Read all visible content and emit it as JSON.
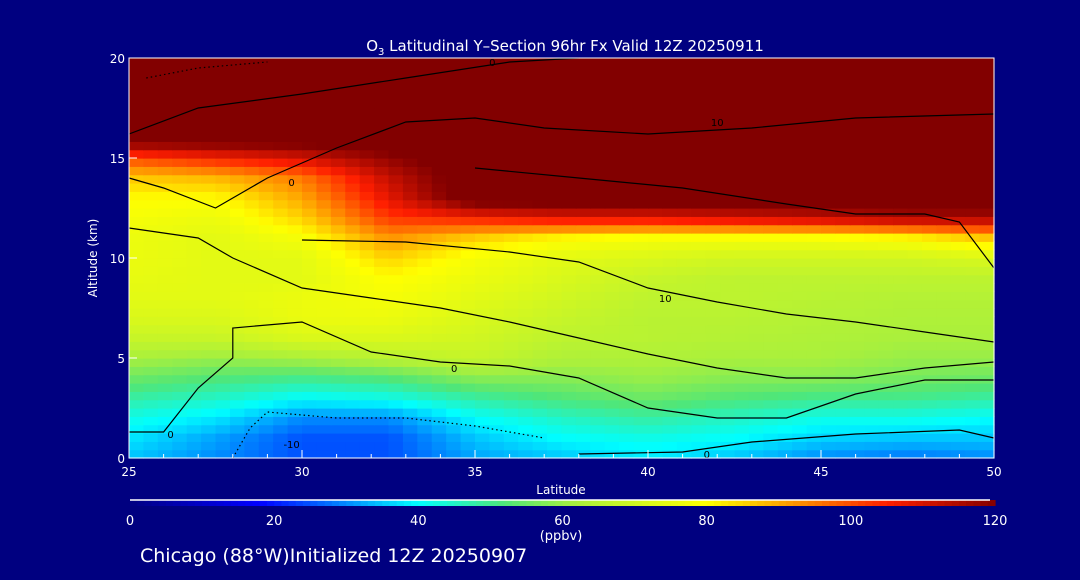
{
  "chart_data": {
    "type": "heatmap",
    "title_prefix": "O",
    "title_sub": "3",
    "title_rest": " Latitudinal Y–Section 96hr  Fx Valid 12Z 20250911",
    "xlabel": "Latitude",
    "ylabel": "Altitude (km)",
    "xlim": [
      25,
      50
    ],
    "ylim": [
      0,
      20
    ],
    "xticks": [
      "25",
      "30",
      "35",
      "40",
      "45",
      "50"
    ],
    "yticks": [
      "0",
      "5",
      "10",
      "15",
      "20"
    ],
    "colorbar": {
      "range": [
        0,
        120
      ],
      "ticks": [
        "0",
        "20",
        "40",
        "60",
        "80",
        "100",
        "120"
      ],
      "unit": "(ppbv)"
    },
    "grid_lat": [
      25,
      27.5,
      30,
      32.5,
      35,
      37.5,
      40,
      42.5,
      45,
      47.5,
      50
    ],
    "grid_alt": [
      0,
      1,
      2,
      3,
      4,
      5,
      6,
      7,
      8,
      9,
      10,
      11,
      12,
      13,
      14,
      15,
      16,
      17,
      18,
      19,
      20
    ],
    "values_ppbv": [
      [
        35,
        30,
        25,
        25,
        32,
        35,
        38,
        35,
        30,
        28,
        30
      ],
      [
        38,
        32,
        25,
        25,
        35,
        40,
        42,
        40,
        36,
        35,
        35
      ],
      [
        42,
        38,
        30,
        30,
        40,
        45,
        48,
        45,
        42,
        42,
        40
      ],
      [
        48,
        45,
        40,
        42,
        48,
        52,
        55,
        52,
        50,
        50,
        48
      ],
      [
        55,
        52,
        50,
        52,
        58,
        58,
        60,
        58,
        58,
        56,
        55
      ],
      [
        62,
        60,
        62,
        65,
        68,
        63,
        63,
        62,
        62,
        60,
        60
      ],
      [
        68,
        68,
        72,
        72,
        70,
        66,
        65,
        64,
        63,
        62,
        62
      ],
      [
        72,
        72,
        76,
        76,
        72,
        68,
        65,
        65,
        64,
        63,
        63
      ],
      [
        74,
        74,
        76,
        78,
        74,
        70,
        66,
        66,
        65,
        64,
        64
      ],
      [
        75,
        74,
        74,
        80,
        76,
        72,
        68,
        66,
        66,
        66,
        66
      ],
      [
        76,
        74,
        74,
        85,
        78,
        74,
        72,
        70,
        70,
        70,
        72
      ],
      [
        76,
        74,
        78,
        92,
        85,
        80,
        78,
        78,
        78,
        80,
        86
      ],
      [
        78,
        76,
        85,
        102,
        105,
        108,
        108,
        110,
        112,
        115,
        115
      ],
      [
        80,
        80,
        90,
        108,
        125,
        125,
        125,
        125,
        125,
        125,
        125
      ],
      [
        86,
        88,
        95,
        112,
        125,
        125,
        125,
        125,
        125,
        125,
        125
      ],
      [
        100,
        105,
        110,
        118,
        125,
        125,
        125,
        125,
        125,
        125,
        125
      ],
      [
        125,
        125,
        125,
        125,
        125,
        125,
        125,
        125,
        125,
        125,
        125
      ],
      [
        125,
        125,
        125,
        125,
        125,
        125,
        125,
        125,
        125,
        125,
        125
      ],
      [
        125,
        125,
        125,
        125,
        125,
        125,
        125,
        125,
        125,
        125,
        125
      ],
      [
        125,
        125,
        125,
        125,
        125,
        125,
        125,
        125,
        125,
        125,
        125
      ],
      [
        125,
        125,
        125,
        125,
        125,
        125,
        125,
        125,
        125,
        125,
        125
      ]
    ],
    "contours": [
      {
        "dashed": false,
        "points": [
          [
            25,
            1.3
          ],
          [
            26,
            1.3
          ],
          [
            27,
            3.5
          ],
          [
            28,
            5
          ],
          [
            28,
            6.5
          ],
          [
            30,
            6.8
          ],
          [
            32,
            5.3
          ],
          [
            34,
            4.8
          ],
          [
            36,
            4.6
          ],
          [
            38,
            4
          ],
          [
            40,
            2.5
          ],
          [
            42,
            2
          ],
          [
            44,
            2
          ],
          [
            46,
            3.2
          ],
          [
            48,
            3.9
          ],
          [
            50,
            3.9
          ]
        ]
      },
      {
        "dashed": false,
        "points": [
          [
            25,
            11.5
          ],
          [
            27,
            11
          ],
          [
            28,
            10
          ],
          [
            30,
            8.5
          ],
          [
            32,
            8
          ],
          [
            34,
            7.5
          ],
          [
            36,
            6.8
          ],
          [
            38,
            6
          ],
          [
            40,
            5.2
          ],
          [
            42,
            4.5
          ],
          [
            44,
            4
          ],
          [
            46,
            4
          ],
          [
            48,
            4.5
          ],
          [
            50,
            4.8
          ]
        ]
      },
      {
        "dashed": false,
        "points": [
          [
            30,
            10.9
          ],
          [
            33,
            10.8
          ],
          [
            36,
            10.3
          ],
          [
            38,
            9.8
          ],
          [
            40,
            8.5
          ],
          [
            42,
            7.8
          ],
          [
            44,
            7.2
          ],
          [
            46,
            6.8
          ],
          [
            48,
            6.3
          ],
          [
            50,
            5.8
          ]
        ]
      },
      {
        "dashed": false,
        "points": [
          [
            25,
            14
          ],
          [
            26,
            13.5
          ],
          [
            27.5,
            12.5
          ],
          [
            29,
            14
          ],
          [
            31,
            15.5
          ],
          [
            33,
            16.8
          ],
          [
            35,
            17
          ],
          [
            37,
            16.5
          ],
          [
            40,
            16.2
          ],
          [
            43,
            16.5
          ],
          [
            46,
            17
          ],
          [
            50,
            17.2
          ]
        ]
      },
      {
        "dashed": false,
        "points": [
          [
            25,
            16.2
          ],
          [
            27,
            17.5
          ],
          [
            30,
            18.2
          ],
          [
            33,
            19
          ],
          [
            36,
            19.8
          ],
          [
            38,
            20
          ]
        ]
      },
      {
        "dashed": false,
        "points": [
          [
            35,
            14.5
          ],
          [
            38,
            14
          ],
          [
            41,
            13.5
          ],
          [
            44,
            12.7
          ],
          [
            46,
            12.2
          ],
          [
            48,
            12.2
          ],
          [
            49,
            11.8
          ],
          [
            50,
            9.5
          ]
        ]
      },
      {
        "dashed": false,
        "points": [
          [
            38,
            0.2
          ],
          [
            41,
            0.3
          ],
          [
            43,
            0.8
          ],
          [
            46,
            1.2
          ],
          [
            49,
            1.4
          ],
          [
            50,
            1
          ]
        ]
      },
      {
        "dashed": true,
        "points": [
          [
            28,
            0
          ],
          [
            28.5,
            1.5
          ],
          [
            29,
            2.3
          ],
          [
            31,
            2
          ],
          [
            33,
            2
          ],
          [
            35,
            1.6
          ],
          [
            37,
            1
          ]
        ]
      },
      {
        "dashed": true,
        "points": [
          [
            25.5,
            19
          ],
          [
            27,
            19.5
          ],
          [
            29,
            19.8
          ]
        ]
      }
    ],
    "contour_labels": [
      {
        "text": "0",
        "lat": 26.2,
        "alt": 1.2
      },
      {
        "text": "0",
        "lat": 34.4,
        "alt": 4.5
      },
      {
        "text": "0",
        "lat": 41.7,
        "alt": 0.2
      },
      {
        "text": "0",
        "lat": 29.7,
        "alt": 13.8
      },
      {
        "text": "10",
        "lat": 40.5,
        "alt": 8.0
      },
      {
        "text": "10",
        "lat": 42,
        "alt": 16.8
      },
      {
        "text": "-10",
        "lat": 29.7,
        "alt": 0.7
      },
      {
        "text": "0",
        "lat": 35.5,
        "alt": 19.8
      }
    ]
  },
  "footer": {
    "location": "Chicago (88°W)Initialized 12Z 20250907"
  }
}
